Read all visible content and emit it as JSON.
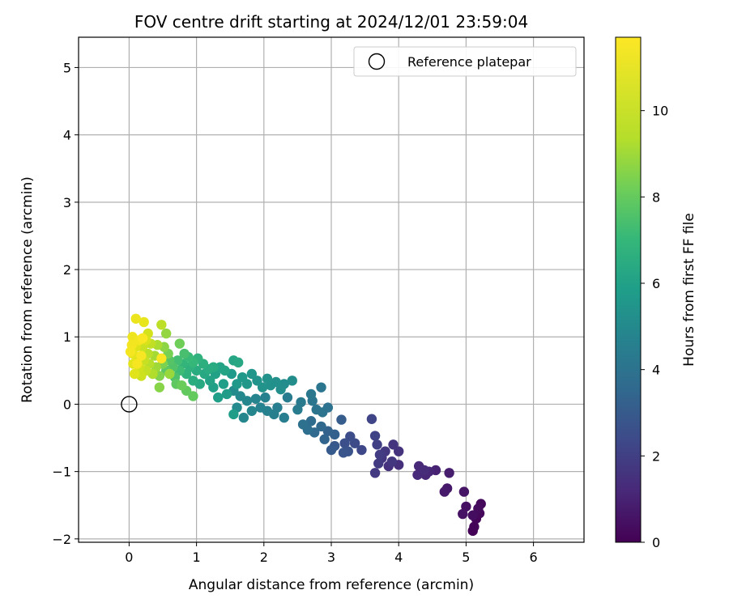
{
  "chart_data": {
    "type": "scatter",
    "title": "FOV centre drift starting at 2024/12/01 23:59:04",
    "xlabel": "Angular distance from reference (arcmin)",
    "ylabel": "Rotation from reference (arcmin)",
    "colorbar_label": "Hours from first FF file",
    "xlim": [
      -0.75,
      6.75
    ],
    "ylim": [
      -2.05,
      5.45
    ],
    "clim": [
      0,
      11.7
    ],
    "colormap": "viridis",
    "x_ticks": [
      "0",
      "1",
      "2",
      "3",
      "4",
      "5",
      "6"
    ],
    "y_ticks": [
      "−2",
      "−1",
      "0",
      "1",
      "2",
      "3",
      "4",
      "5"
    ],
    "colorbar_ticks": [
      "0",
      "2",
      "4",
      "6",
      "8",
      "10"
    ],
    "grid": true,
    "legend": {
      "label": "Reference platepar",
      "marker": "open-circle",
      "placement": "top-right"
    },
    "reference_point": {
      "x": 0,
      "y": 0
    },
    "points": [
      {
        "x": 5.1,
        "y": -1.88,
        "t": 0.05
      },
      {
        "x": 5.12,
        "y": -1.82,
        "t": 0.1
      },
      {
        "x": 5.15,
        "y": -1.7,
        "t": 0.15
      },
      {
        "x": 5.2,
        "y": -1.62,
        "t": 0.2
      },
      {
        "x": 5.22,
        "y": -1.48,
        "t": 0.25
      },
      {
        "x": 5.18,
        "y": -1.55,
        "t": 0.3
      },
      {
        "x": 5.1,
        "y": -1.65,
        "t": 0.35
      },
      {
        "x": 5.0,
        "y": -1.52,
        "t": 0.45
      },
      {
        "x": 4.95,
        "y": -1.63,
        "t": 0.5
      },
      {
        "x": 4.97,
        "y": -1.3,
        "t": 0.6
      },
      {
        "x": 4.72,
        "y": -1.25,
        "t": 0.7
      },
      {
        "x": 4.68,
        "y": -1.3,
        "t": 0.75
      },
      {
        "x": 4.75,
        "y": -1.02,
        "t": 0.85
      },
      {
        "x": 4.55,
        "y": -0.98,
        "t": 1.0
      },
      {
        "x": 4.45,
        "y": -1.0,
        "t": 1.1
      },
      {
        "x": 4.4,
        "y": -1.05,
        "t": 1.15
      },
      {
        "x": 4.3,
        "y": -0.92,
        "t": 1.2
      },
      {
        "x": 4.28,
        "y": -1.05,
        "t": 1.25
      },
      {
        "x": 4.38,
        "y": -0.98,
        "t": 1.3
      },
      {
        "x": 4.0,
        "y": -0.9,
        "t": 1.45
      },
      {
        "x": 3.85,
        "y": -0.92,
        "t": 1.5
      },
      {
        "x": 4.0,
        "y": -0.7,
        "t": 1.55
      },
      {
        "x": 3.92,
        "y": -0.6,
        "t": 1.6
      },
      {
        "x": 3.75,
        "y": -0.8,
        "t": 1.65
      },
      {
        "x": 3.8,
        "y": -0.7,
        "t": 1.7
      },
      {
        "x": 3.9,
        "y": -0.85,
        "t": 1.75
      },
      {
        "x": 3.65,
        "y": -1.02,
        "t": 1.8
      },
      {
        "x": 3.7,
        "y": -0.88,
        "t": 1.85
      },
      {
        "x": 3.72,
        "y": -0.75,
        "t": 1.9
      },
      {
        "x": 3.68,
        "y": -0.6,
        "t": 2.0
      },
      {
        "x": 3.65,
        "y": -0.47,
        "t": 2.1
      },
      {
        "x": 3.6,
        "y": -0.22,
        "t": 2.2
      },
      {
        "x": 3.45,
        "y": -0.68,
        "t": 2.3
      },
      {
        "x": 3.35,
        "y": -0.58,
        "t": 2.4
      },
      {
        "x": 3.28,
        "y": -0.48,
        "t": 2.5
      },
      {
        "x": 3.2,
        "y": -0.58,
        "t": 2.6
      },
      {
        "x": 3.25,
        "y": -0.7,
        "t": 2.7
      },
      {
        "x": 3.18,
        "y": -0.72,
        "t": 2.8
      },
      {
        "x": 3.05,
        "y": -0.62,
        "t": 2.9
      },
      {
        "x": 3.0,
        "y": -0.68,
        "t": 3.0
      },
      {
        "x": 3.15,
        "y": -0.23,
        "t": 3.1
      },
      {
        "x": 3.05,
        "y": -0.45,
        "t": 3.2
      },
      {
        "x": 2.95,
        "y": -0.4,
        "t": 3.3
      },
      {
        "x": 2.9,
        "y": -0.52,
        "t": 3.4
      },
      {
        "x": 2.85,
        "y": -0.33,
        "t": 3.5
      },
      {
        "x": 2.75,
        "y": -0.42,
        "t": 3.6
      },
      {
        "x": 2.7,
        "y": -0.25,
        "t": 3.7
      },
      {
        "x": 2.65,
        "y": -0.38,
        "t": 3.8
      },
      {
        "x": 2.58,
        "y": -0.3,
        "t": 3.9
      },
      {
        "x": 2.95,
        "y": -0.05,
        "t": 3.95
      },
      {
        "x": 2.87,
        "y": -0.12,
        "t": 4.0
      },
      {
        "x": 2.78,
        "y": -0.08,
        "t": 4.05
      },
      {
        "x": 2.72,
        "y": 0.05,
        "t": 4.1
      },
      {
        "x": 2.85,
        "y": 0.25,
        "t": 4.15
      },
      {
        "x": 2.7,
        "y": 0.15,
        "t": 4.2
      },
      {
        "x": 2.55,
        "y": 0.03,
        "t": 4.3
      },
      {
        "x": 2.5,
        "y": -0.08,
        "t": 4.35
      },
      {
        "x": 2.35,
        "y": 0.1,
        "t": 4.4
      },
      {
        "x": 2.3,
        "y": -0.2,
        "t": 4.45
      },
      {
        "x": 2.2,
        "y": -0.05,
        "t": 4.5
      },
      {
        "x": 2.15,
        "y": -0.15,
        "t": 4.55
      },
      {
        "x": 2.05,
        "y": -0.1,
        "t": 4.6
      },
      {
        "x": 2.02,
        "y": 0.1,
        "t": 4.65
      },
      {
        "x": 1.95,
        "y": -0.05,
        "t": 4.7
      },
      {
        "x": 1.88,
        "y": 0.08,
        "t": 4.75
      },
      {
        "x": 1.82,
        "y": -0.1,
        "t": 4.8
      },
      {
        "x": 1.75,
        "y": 0.05,
        "t": 4.85
      },
      {
        "x": 1.7,
        "y": -0.2,
        "t": 4.9
      },
      {
        "x": 1.65,
        "y": 0.12,
        "t": 4.95
      },
      {
        "x": 1.6,
        "y": -0.05,
        "t": 5.0
      },
      {
        "x": 1.55,
        "y": 0.2,
        "t": 5.05
      },
      {
        "x": 2.3,
        "y": 0.3,
        "t": 5.1
      },
      {
        "x": 2.42,
        "y": 0.35,
        "t": 5.15
      },
      {
        "x": 2.25,
        "y": 0.22,
        "t": 5.2
      },
      {
        "x": 2.18,
        "y": 0.33,
        "t": 5.25
      },
      {
        "x": 2.1,
        "y": 0.28,
        "t": 5.3
      },
      {
        "x": 2.05,
        "y": 0.38,
        "t": 5.35
      },
      {
        "x": 1.98,
        "y": 0.25,
        "t": 5.4
      },
      {
        "x": 1.9,
        "y": 0.35,
        "t": 5.45
      },
      {
        "x": 1.82,
        "y": 0.45,
        "t": 5.5
      },
      {
        "x": 1.75,
        "y": 0.3,
        "t": 5.55
      },
      {
        "x": 1.68,
        "y": 0.4,
        "t": 5.6
      },
      {
        "x": 1.6,
        "y": 0.3,
        "t": 5.65
      },
      {
        "x": 1.52,
        "y": 0.45,
        "t": 5.7
      },
      {
        "x": 1.45,
        "y": 0.15,
        "t": 5.75
      },
      {
        "x": 1.55,
        "y": -0.15,
        "t": 5.8
      },
      {
        "x": 1.4,
        "y": 0.3,
        "t": 5.85
      },
      {
        "x": 1.32,
        "y": 0.1,
        "t": 5.9
      },
      {
        "x": 1.25,
        "y": 0.25,
        "t": 5.95
      },
      {
        "x": 1.28,
        "y": 0.45,
        "t": 6.0
      },
      {
        "x": 1.2,
        "y": 0.35,
        "t": 6.05
      },
      {
        "x": 1.35,
        "y": 0.55,
        "t": 6.1
      },
      {
        "x": 1.42,
        "y": 0.5,
        "t": 6.15
      },
      {
        "x": 1.55,
        "y": 0.65,
        "t": 6.2
      },
      {
        "x": 1.62,
        "y": 0.62,
        "t": 6.25
      },
      {
        "x": 1.12,
        "y": 0.45,
        "t": 6.3
      },
      {
        "x": 1.05,
        "y": 0.3,
        "t": 6.35
      },
      {
        "x": 1.25,
        "y": 0.55,
        "t": 6.4
      },
      {
        "x": 1.18,
        "y": 0.52,
        "t": 6.45
      },
      {
        "x": 1.0,
        "y": 0.5,
        "t": 6.5
      },
      {
        "x": 0.95,
        "y": 0.35,
        "t": 6.55
      },
      {
        "x": 1.1,
        "y": 0.6,
        "t": 6.6
      },
      {
        "x": 0.9,
        "y": 0.55,
        "t": 6.7
      },
      {
        "x": 1.02,
        "y": 0.68,
        "t": 6.75
      },
      {
        "x": 0.85,
        "y": 0.45,
        "t": 6.8
      },
      {
        "x": 0.8,
        "y": 0.6,
        "t": 6.9
      },
      {
        "x": 0.95,
        "y": 0.62,
        "t": 7.0
      },
      {
        "x": 0.88,
        "y": 0.7,
        "t": 7.1
      },
      {
        "x": 0.75,
        "y": 0.5,
        "t": 7.2
      },
      {
        "x": 0.72,
        "y": 0.65,
        "t": 7.3
      },
      {
        "x": 0.82,
        "y": 0.75,
        "t": 7.4
      },
      {
        "x": 0.68,
        "y": 0.4,
        "t": 7.5
      },
      {
        "x": 0.65,
        "y": 0.55,
        "t": 7.6
      },
      {
        "x": 0.6,
        "y": 0.65,
        "t": 7.7
      },
      {
        "x": 0.55,
        "y": 0.5,
        "t": 7.8
      },
      {
        "x": 0.7,
        "y": 0.3,
        "t": 7.9
      },
      {
        "x": 0.85,
        "y": 0.2,
        "t": 7.95
      },
      {
        "x": 0.95,
        "y": 0.12,
        "t": 8.0
      },
      {
        "x": 0.78,
        "y": 0.28,
        "t": 8.1
      },
      {
        "x": 0.75,
        "y": 0.9,
        "t": 8.2
      },
      {
        "x": 0.58,
        "y": 0.75,
        "t": 8.3
      },
      {
        "x": 0.5,
        "y": 0.6,
        "t": 8.4
      },
      {
        "x": 0.45,
        "y": 0.42,
        "t": 8.5
      },
      {
        "x": 0.45,
        "y": 0.25,
        "t": 8.6
      },
      {
        "x": 0.52,
        "y": 0.85,
        "t": 8.7
      },
      {
        "x": 0.55,
        "y": 1.05,
        "t": 8.8
      },
      {
        "x": 0.6,
        "y": 0.45,
        "t": 8.9
      },
      {
        "x": 0.4,
        "y": 0.55,
        "t": 9.0
      },
      {
        "x": 0.38,
        "y": 0.72,
        "t": 9.1
      },
      {
        "x": 0.42,
        "y": 0.88,
        "t": 9.2
      },
      {
        "x": 0.35,
        "y": 0.45,
        "t": 9.3
      },
      {
        "x": 0.3,
        "y": 0.6,
        "t": 9.4
      },
      {
        "x": 0.28,
        "y": 0.75,
        "t": 9.5
      },
      {
        "x": 0.48,
        "y": 1.18,
        "t": 9.6
      },
      {
        "x": 0.32,
        "y": 0.9,
        "t": 9.7
      },
      {
        "x": 0.25,
        "y": 0.5,
        "t": 9.8
      },
      {
        "x": 0.22,
        "y": 0.65,
        "t": 9.9
      },
      {
        "x": 0.2,
        "y": 0.85,
        "t": 10.0
      },
      {
        "x": 0.18,
        "y": 0.42,
        "t": 10.1
      },
      {
        "x": 0.15,
        "y": 0.55,
        "t": 10.2
      },
      {
        "x": 0.28,
        "y": 1.05,
        "t": 10.3
      },
      {
        "x": 0.25,
        "y": 0.95,
        "t": 10.4
      },
      {
        "x": 0.12,
        "y": 0.7,
        "t": 10.5
      },
      {
        "x": 0.1,
        "y": 0.85,
        "t": 10.6
      },
      {
        "x": 0.08,
        "y": 0.45,
        "t": 10.7
      },
      {
        "x": 0.06,
        "y": 0.6,
        "t": 10.8
      },
      {
        "x": 0.05,
        "y": 0.75,
        "t": 10.9
      },
      {
        "x": 0.22,
        "y": 1.22,
        "t": 11.0
      },
      {
        "x": 0.1,
        "y": 1.27,
        "t": 11.1
      },
      {
        "x": 0.05,
        "y": 1.0,
        "t": 11.2
      },
      {
        "x": 0.15,
        "y": 0.95,
        "t": 11.3
      },
      {
        "x": 0.04,
        "y": 0.88,
        "t": 11.35
      },
      {
        "x": 0.02,
        "y": 0.78,
        "t": 11.4
      },
      {
        "x": 0.12,
        "y": 0.6,
        "t": 11.45
      },
      {
        "x": 0.18,
        "y": 0.72,
        "t": 11.5
      },
      {
        "x": 0.48,
        "y": 0.68,
        "t": 11.55
      },
      {
        "x": 0.2,
        "y": 0.98,
        "t": 11.6
      }
    ]
  }
}
